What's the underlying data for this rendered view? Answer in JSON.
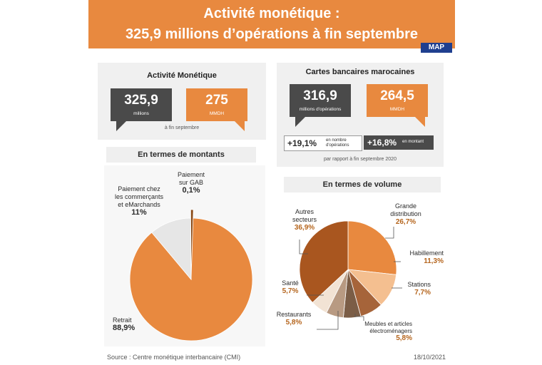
{
  "header": {
    "title_line1": "Activité monétique :",
    "title_line2": "325,9 millions d’opérations à fin septembre",
    "logo": "MAP"
  },
  "activite": {
    "title": "Activité Monétique",
    "ops_value": "325,9",
    "ops_unit": "millions",
    "amount_value": "275",
    "amount_unit": "MMDH",
    "note": "à fin septembre"
  },
  "cartes": {
    "title": "Cartes bancaires marocaines",
    "ops_value": "316,9",
    "ops_unit": "millions d'opérations",
    "amount_value": "264,5",
    "amount_unit": "MMDH",
    "growth_ops_pct": "+19,1%",
    "growth_ops_desc_1": "en nombre",
    "growth_ops_desc_2": "d'opérations",
    "growth_amount_pct": "+16,8%",
    "growth_amount_desc": "en montant",
    "note": "par rapport à fin septembre 2020"
  },
  "montants_title": "En termes de montants",
  "volume_title": "En termes de volume",
  "chart_data": [
    {
      "type": "pie",
      "title": "En termes de montants",
      "slices": [
        {
          "label_lines": [
            "Retrait"
          ],
          "value": 88.9,
          "value_label": "88,9%",
          "color": "#e8893f"
        },
        {
          "label_lines": [
            "Paiement chez",
            "les commerçants",
            "et eMarchands"
          ],
          "value": 11,
          "value_label": "11%",
          "color": "#e6e6e6"
        },
        {
          "label_lines": [
            "Paiement",
            "sur GAB"
          ],
          "value": 0.1,
          "value_label": "0,1%",
          "color": "#8a4a17"
        }
      ]
    },
    {
      "type": "pie",
      "title": "En termes de volume",
      "slices": [
        {
          "label_lines": [
            "Grande",
            "distribution"
          ],
          "value": 26.7,
          "value_label": "26,7%",
          "color": "#e8893f"
        },
        {
          "label_lines": [
            "Habillement"
          ],
          "value": 11.3,
          "value_label": "11,3%",
          "color": "#f4bf90"
        },
        {
          "label_lines": [
            "Stations"
          ],
          "value": 7.7,
          "value_label": "7,7%",
          "color": "#a6643a"
        },
        {
          "label_lines": [
            "Meubles et articles",
            "électroménagers"
          ],
          "value": 5.8,
          "value_label": "5,8%",
          "color": "#7b5d46"
        },
        {
          "label_lines": [
            "Restaurants"
          ],
          "value": 5.8,
          "value_label": "5,8%",
          "color": "#b89a82"
        },
        {
          "label_lines": [
            "Santé"
          ],
          "value": 5.7,
          "value_label": "5,7%",
          "color": "#f2e3d4"
        },
        {
          "label_lines": [
            "Autres",
            "secteurs"
          ],
          "value": 36.9,
          "value_label": "36,9%",
          "color": "#a9561f"
        }
      ]
    }
  ],
  "footer": {
    "source": "Source : Centre monétique interbancaire (CMI)",
    "date": "18/10/2021"
  }
}
